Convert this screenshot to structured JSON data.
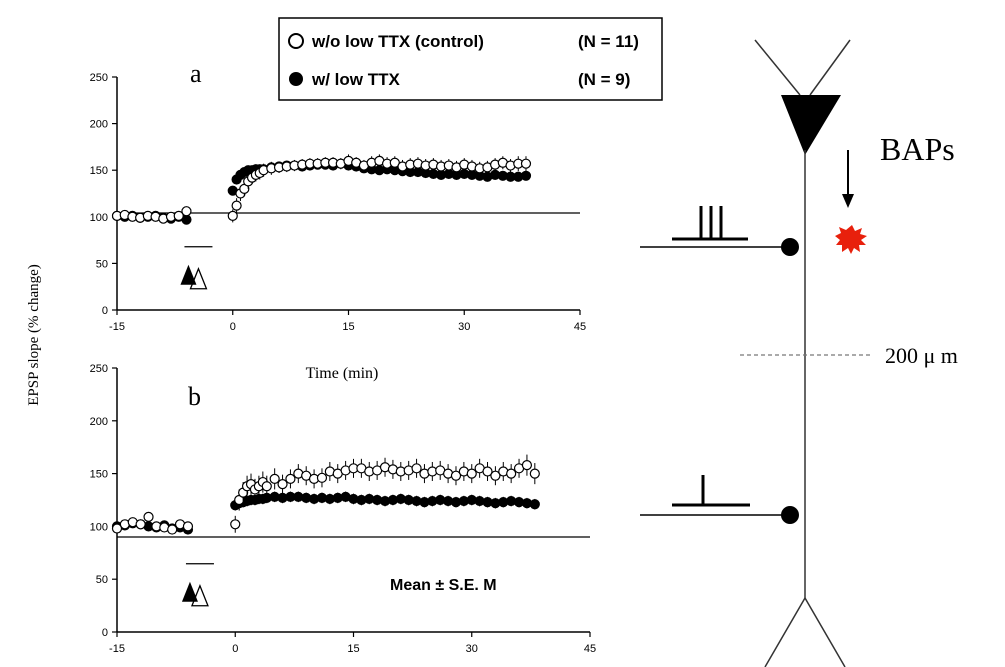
{
  "legend": {
    "items": [
      {
        "label": "w/o low TTX (control)",
        "n": "(N = 11)",
        "marker": "open-circle"
      },
      {
        "label": "w/ low TTX",
        "n": "(N = 9)",
        "marker": "filled-circle"
      }
    ]
  },
  "ylabel": "EPSP slope (% change)",
  "xlabel": "Time (min)",
  "annotation_mean": "Mean ± S.E. M",
  "neuron": {
    "baps_label": "BAPs",
    "distance_label": "200 μ m"
  },
  "colors": {
    "burst": "#e8200c",
    "ink": "#000000"
  },
  "chart_data": [
    {
      "type": "scatter",
      "panel_label": "a",
      "xlabel": "Time (min)",
      "ylabel": "EPSP slope (% change)",
      "xticks": [
        "-15",
        "0",
        "15",
        "30",
        "45"
      ],
      "yticks": [
        "0",
        "50",
        "100",
        "150",
        "200",
        "250"
      ],
      "xlim": [
        -15,
        45
      ],
      "ylim": [
        0,
        250
      ],
      "baseline": 100,
      "stimulus_time": -6,
      "series": [
        {
          "name": "w/o low TTX (control)",
          "marker": "open-circle",
          "x": [
            -15,
            -14,
            -13,
            -12,
            -11,
            -10,
            -9,
            -8,
            -7,
            -6,
            0,
            0.5,
            1,
            1.5,
            2,
            2.5,
            3,
            3.5,
            4,
            5,
            6,
            7,
            8,
            9,
            10,
            11,
            12,
            13,
            14,
            15,
            16,
            17,
            18,
            19,
            20,
            21,
            22,
            23,
            24,
            25,
            26,
            27,
            28,
            29,
            30,
            31,
            32,
            33,
            34,
            35,
            36,
            37,
            38
          ],
          "y": [
            101,
            102,
            100,
            99,
            101,
            100,
            98,
            100,
            101,
            106,
            101,
            112,
            125,
            130,
            138,
            142,
            145,
            147,
            150,
            152,
            153,
            154,
            155,
            156,
            157,
            157,
            158,
            158,
            157,
            160,
            158,
            155,
            158,
            160,
            157,
            158,
            154,
            156,
            157,
            155,
            156,
            154,
            155,
            153,
            156,
            154,
            152,
            153,
            156,
            158,
            155,
            157,
            157
          ],
          "err": [
            3,
            3,
            3,
            3,
            3,
            3,
            3,
            3,
            3,
            3,
            7,
            8,
            8,
            8,
            8,
            7,
            7,
            7,
            7,
            7,
            6,
            6,
            6,
            6,
            6,
            6,
            6,
            6,
            6,
            7,
            6,
            6,
            7,
            7,
            7,
            7,
            7,
            7,
            7,
            7,
            7,
            7,
            7,
            7,
            7,
            7,
            7,
            7,
            7,
            7,
            7,
            8,
            8
          ]
        },
        {
          "name": "w/ low TTX",
          "marker": "filled-circle",
          "x": [
            -15,
            -14,
            -13,
            -12,
            -11,
            -10,
            -9,
            -8,
            -7,
            -6,
            0,
            0.5,
            1,
            1.5,
            2,
            2.5,
            3,
            3.5,
            4,
            5,
            6,
            7,
            8,
            9,
            10,
            11,
            12,
            13,
            14,
            15,
            16,
            17,
            18,
            19,
            20,
            21,
            22,
            23,
            24,
            25,
            26,
            27,
            28,
            29,
            30,
            31,
            32,
            33,
            34,
            35,
            36,
            37,
            38
          ],
          "y": [
            101,
            100,
            101,
            99,
            100,
            101,
            99,
            98,
            100,
            97,
            128,
            140,
            145,
            148,
            150,
            150,
            151,
            151,
            151,
            153,
            154,
            155,
            155,
            154,
            155,
            156,
            156,
            155,
            157,
            155,
            154,
            152,
            151,
            150,
            151,
            150,
            149,
            148,
            148,
            147,
            146,
            145,
            146,
            145,
            146,
            145,
            144,
            143,
            145,
            144,
            143,
            143,
            144
          ],
          "err": [
            2,
            2,
            2,
            2,
            2,
            2,
            2,
            2,
            2,
            2,
            5,
            5,
            5,
            5,
            5,
            5,
            5,
            5,
            5,
            5,
            5,
            5,
            5,
            5,
            5,
            5,
            5,
            5,
            5,
            5,
            5,
            5,
            5,
            5,
            5,
            5,
            5,
            5,
            5,
            5,
            5,
            5,
            5,
            5,
            5,
            5,
            5,
            5,
            5,
            5,
            5,
            5,
            5
          ]
        }
      ]
    },
    {
      "type": "scatter",
      "panel_label": "b",
      "xlabel": "",
      "ylabel": "EPSP slope (% change)",
      "xticks": [
        "-15",
        "0",
        "15",
        "30",
        "45"
      ],
      "yticks": [
        "0",
        "50",
        "100",
        "150",
        "200",
        "250"
      ],
      "xlim": [
        -15,
        45
      ],
      "ylim": [
        0,
        250
      ],
      "baseline": 100,
      "stimulus_time": -6,
      "series": [
        {
          "name": "w/o low TTX (control)",
          "marker": "open-circle",
          "x": [
            -15,
            -14,
            -13,
            -12,
            -11,
            -10,
            -9,
            -8,
            -7,
            -6,
            0,
            0.5,
            1,
            1.5,
            2,
            2.5,
            3,
            3.5,
            4,
            5,
            6,
            7,
            8,
            9,
            10,
            11,
            12,
            13,
            14,
            15,
            16,
            17,
            18,
            19,
            20,
            21,
            22,
            23,
            24,
            25,
            26,
            27,
            28,
            29,
            30,
            31,
            32,
            33,
            34,
            35,
            36,
            37,
            38
          ],
          "y": [
            98,
            102,
            104,
            102,
            109,
            100,
            99,
            97,
            102,
            100,
            102,
            125,
            132,
            138,
            140,
            135,
            138,
            142,
            138,
            145,
            140,
            145,
            150,
            148,
            145,
            146,
            152,
            150,
            153,
            155,
            155,
            152,
            153,
            156,
            154,
            152,
            153,
            155,
            150,
            152,
            153,
            150,
            148,
            152,
            150,
            155,
            152,
            148,
            152,
            150,
            155,
            158,
            150
          ],
          "err": [
            3,
            3,
            4,
            4,
            4,
            3,
            3,
            3,
            3,
            3,
            8,
            10,
            10,
            10,
            10,
            10,
            10,
            10,
            10,
            10,
            9,
            9,
            9,
            9,
            9,
            9,
            9,
            9,
            9,
            9,
            9,
            9,
            9,
            9,
            9,
            9,
            9,
            9,
            9,
            9,
            9,
            9,
            9,
            9,
            9,
            9,
            9,
            9,
            9,
            9,
            9,
            10,
            10
          ]
        },
        {
          "name": "w/ low TTX",
          "marker": "filled-circle",
          "x": [
            -15,
            -14,
            -13,
            -12,
            -11,
            -10,
            -9,
            -8,
            -7,
            -6,
            0,
            0.5,
            1,
            1.5,
            2,
            2.5,
            3,
            3.5,
            4,
            5,
            6,
            7,
            8,
            9,
            10,
            11,
            12,
            13,
            14,
            15,
            16,
            17,
            18,
            19,
            20,
            21,
            22,
            23,
            24,
            25,
            26,
            27,
            28,
            29,
            30,
            31,
            32,
            33,
            34,
            35,
            36,
            37,
            38
          ],
          "y": [
            100,
            101,
            103,
            102,
            100,
            99,
            101,
            98,
            99,
            97,
            120,
            122,
            123,
            124,
            125,
            125,
            126,
            126,
            127,
            128,
            127,
            128,
            128,
            127,
            126,
            127,
            126,
            127,
            128,
            126,
            125,
            126,
            125,
            124,
            125,
            126,
            125,
            124,
            123,
            124,
            125,
            124,
            123,
            124,
            125,
            124,
            123,
            122,
            123,
            124,
            123,
            122,
            121
          ],
          "err": [
            3,
            3,
            3,
            3,
            3,
            3,
            3,
            3,
            3,
            3,
            5,
            5,
            5,
            5,
            5,
            5,
            5,
            5,
            5,
            5,
            5,
            5,
            5,
            5,
            5,
            5,
            5,
            5,
            5,
            5,
            5,
            5,
            5,
            5,
            5,
            5,
            5,
            5,
            5,
            5,
            5,
            5,
            5,
            5,
            5,
            5,
            5,
            5,
            5,
            5,
            5,
            5,
            5
          ]
        }
      ]
    }
  ]
}
